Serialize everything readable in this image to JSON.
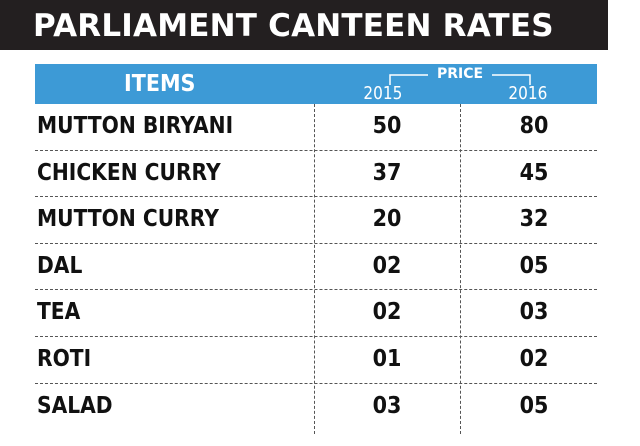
{
  "title": "PARLIAMENT CANTEEN RATES",
  "table": {
    "items_header": "ITEMS",
    "price_header": "PRICE",
    "years": [
      "2015",
      "2016"
    ],
    "rows": [
      {
        "item": "MUTTON BIRYANI",
        "y2015": "50",
        "y2016": "80"
      },
      {
        "item": "CHICKEN CURRY",
        "y2015": "37",
        "y2016": "45"
      },
      {
        "item": "MUTTON CURRY",
        "y2015": "20",
        "y2016": "32"
      },
      {
        "item": "DAL",
        "y2015": "02",
        "y2016": "05"
      },
      {
        "item": "TEA",
        "y2015": "02",
        "y2016": "03"
      },
      {
        "item": "ROTI",
        "y2015": "01",
        "y2016": "02"
      },
      {
        "item": "SALAD",
        "y2015": "03",
        "y2016": "05"
      }
    ]
  },
  "colors": {
    "title_bg": "#231f20",
    "header_bg": "#3d9ad6",
    "text": "#111111"
  }
}
